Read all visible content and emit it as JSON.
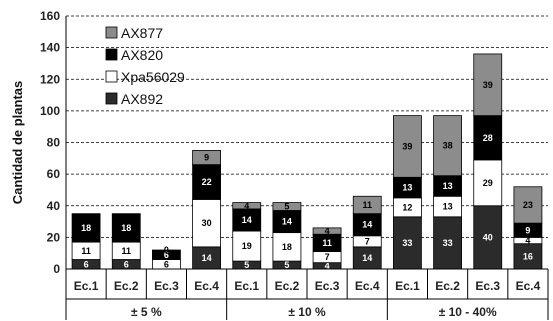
{
  "chart_data": {
    "type": "bar",
    "stacked": true,
    "ylabel": "Cantidad de plantas",
    "ylim": [
      0,
      160
    ],
    "yticks": [
      0,
      20,
      40,
      60,
      80,
      100,
      120,
      140,
      160
    ],
    "grid": true,
    "legend_position": "top-left",
    "categories": [
      "Ec.1",
      "Ec.2",
      "Ec.3",
      "Ec.4",
      "Ec.1",
      "Ec.2",
      "Ec.3",
      "Ec.4",
      "Ec.1",
      "Ec.2",
      "Ec.3",
      "Ec.4"
    ],
    "groups": [
      {
        "label": "± 5 %",
        "count": 4
      },
      {
        "label": "± 10 %",
        "count": 4
      },
      {
        "label": "± 10 - 40%",
        "count": 4
      }
    ],
    "series": [
      {
        "name": "AX892",
        "color": "#2b2b2b",
        "values": [
          6,
          6,
          0,
          14,
          5,
          5,
          4,
          14,
          33,
          33,
          40,
          16
        ]
      },
      {
        "name": "Xpa56029",
        "color": "#ffffff",
        "values": [
          11,
          11,
          6,
          30,
          19,
          18,
          7,
          7,
          12,
          13,
          29,
          4
        ]
      },
      {
        "name": "AX820",
        "color": "#000000",
        "values": [
          18,
          18,
          6,
          22,
          14,
          14,
          11,
          14,
          13,
          13,
          28,
          9
        ]
      },
      {
        "name": "AX877",
        "color": "#8c8c8c",
        "values": [
          0,
          0,
          0,
          9,
          4,
          5,
          4,
          11,
          39,
          38,
          39,
          23
        ]
      }
    ],
    "data_labels": [
      [
        "6",
        "11",
        "18",
        ""
      ],
      [
        "6",
        "11",
        "18",
        ""
      ],
      [
        "",
        "6",
        "6",
        "0"
      ],
      [
        "14",
        "30",
        "22",
        "9"
      ],
      [
        "5",
        "19",
        "14",
        "4"
      ],
      [
        "5",
        "18",
        "14",
        "5"
      ],
      [
        "4",
        "7",
        "11",
        "4"
      ],
      [
        "14",
        "7",
        "14",
        "11"
      ],
      [
        "33",
        "12",
        "13",
        "39"
      ],
      [
        "33",
        "13",
        "13",
        "38"
      ],
      [
        "40",
        "29",
        "28",
        "39"
      ],
      [
        "16",
        "4",
        "9",
        "23"
      ]
    ],
    "legend_order": [
      "AX877",
      "AX820",
      "Xpa56029",
      "AX892"
    ]
  }
}
